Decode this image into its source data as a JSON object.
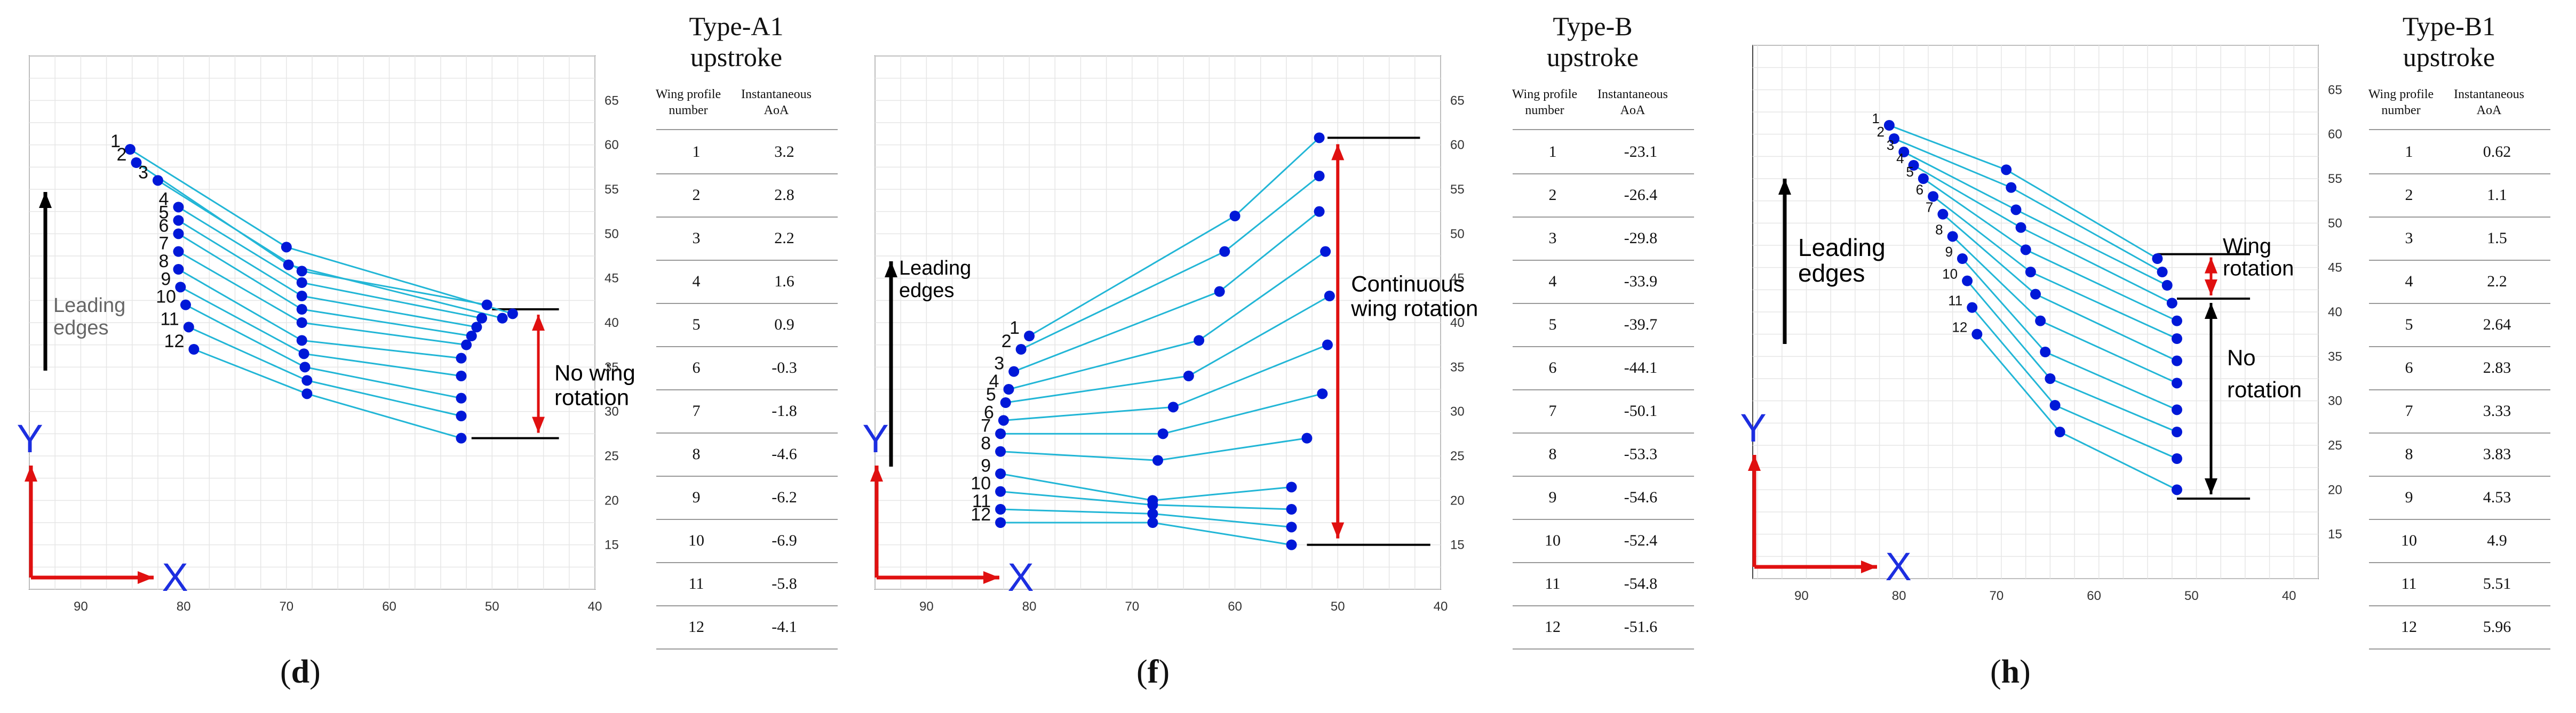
{
  "colors": {
    "line": "#22b6d6",
    "dot": "#0018d8",
    "arrow_red": "#e01010",
    "axis_red": "#e01010",
    "axis_blue": "#1c2ee0",
    "grid": "#e6e6e6"
  },
  "chart_data": [
    {
      "type": "scatter",
      "panel": "d",
      "caption": "d",
      "xlim": [
        95,
        40
      ],
      "ylim": [
        10,
        70
      ],
      "x_ticks": [
        "90",
        "80",
        "70",
        "60",
        "50",
        "40"
      ],
      "y_ticks": [
        "65",
        "60",
        "55",
        "50",
        "45",
        "40",
        "35",
        "30",
        "25",
        "20",
        "15"
      ],
      "axis_labels": {
        "x": "X",
        "y": "Y"
      },
      "annotation_left": "Leading\nedges",
      "annotation_right": "No wing\nrotation",
      "profile_labels": [
        "1",
        "2",
        "3",
        "4",
        "5",
        "6",
        "7",
        "8",
        "9",
        "10",
        "11",
        "12"
      ],
      "profiles": [
        {
          "le": [
            85.2,
            59.5
          ],
          "mid": [
            70.0,
            48.5
          ],
          "te": [
            48.0,
            41.0
          ]
        },
        {
          "le": [
            84.6,
            58.0
          ],
          "mid": [
            69.8,
            46.5
          ],
          "te": [
            49.0,
            40.5
          ]
        },
        {
          "le": [
            82.5,
            56.0
          ],
          "mid": [
            68.5,
            45.8
          ],
          "te": [
            50.5,
            42.0
          ]
        },
        {
          "le": [
            80.5,
            53.0
          ],
          "mid": [
            68.5,
            44.5
          ],
          "te": [
            51.0,
            40.5
          ]
        },
        {
          "le": [
            80.5,
            51.5
          ],
          "mid": [
            68.5,
            43.0
          ],
          "te": [
            51.5,
            39.5
          ]
        },
        {
          "le": [
            80.5,
            50.0
          ],
          "mid": [
            68.5,
            41.5
          ],
          "te": [
            52.0,
            38.5
          ]
        },
        {
          "le": [
            80.5,
            48.0
          ],
          "mid": [
            68.5,
            40.0
          ],
          "te": [
            52.5,
            37.5
          ]
        },
        {
          "le": [
            80.5,
            46.0
          ],
          "mid": [
            68.5,
            38.0
          ],
          "te": [
            53.0,
            36.0
          ]
        },
        {
          "le": [
            80.3,
            44.0
          ],
          "mid": [
            68.3,
            36.5
          ],
          "te": [
            53.0,
            34.0
          ]
        },
        {
          "le": [
            79.8,
            42.0
          ],
          "mid": [
            68.2,
            35.0
          ],
          "te": [
            53.0,
            31.5
          ]
        },
        {
          "le": [
            79.5,
            39.5
          ],
          "mid": [
            68.0,
            33.5
          ],
          "te": [
            53.0,
            29.5
          ]
        },
        {
          "le": [
            79.0,
            37.0
          ],
          "mid": [
            68.0,
            32.0
          ],
          "te": [
            53.0,
            27.0
          ]
        }
      ],
      "table": {
        "title": [
          "Type-A1",
          "upstroke"
        ],
        "col1": "Wing profile number",
        "col2": "Instantaneous AoA",
        "rows": [
          [
            "1",
            "3.2"
          ],
          [
            "2",
            "2.8"
          ],
          [
            "3",
            "2.2"
          ],
          [
            "4",
            "1.6"
          ],
          [
            "5",
            "0.9"
          ],
          [
            "6",
            "-0.3"
          ],
          [
            "7",
            "-1.8"
          ],
          [
            "8",
            "-4.6"
          ],
          [
            "9",
            "-6.2"
          ],
          [
            "10",
            "-6.9"
          ],
          [
            "11",
            "-5.8"
          ],
          [
            "12",
            "-4.1"
          ]
        ]
      }
    },
    {
      "type": "scatter",
      "panel": "f",
      "caption": "f",
      "xlim": [
        95,
        40
      ],
      "ylim": [
        10,
        70
      ],
      "x_ticks": [
        "90",
        "80",
        "70",
        "60",
        "50",
        "40"
      ],
      "y_ticks": [
        "65",
        "60",
        "55",
        "50",
        "45",
        "40",
        "35",
        "30",
        "25",
        "20",
        "15"
      ],
      "axis_labels": {
        "x": "X",
        "y": "Y"
      },
      "annotation_left": "Leading\nedges",
      "annotation_right": "Continuous\nwing rotation",
      "profile_labels": [
        "1",
        "2",
        "3",
        "4",
        "5",
        "6",
        "7",
        "8",
        "9",
        "10",
        "11",
        "12"
      ],
      "profiles": [
        {
          "le": [
            80.0,
            38.5
          ],
          "mid": [
            60.0,
            52.0
          ],
          "te": [
            51.8,
            60.8
          ]
        },
        {
          "le": [
            80.8,
            37.0
          ],
          "mid": [
            61.0,
            48.0
          ],
          "te": [
            51.8,
            56.5
          ]
        },
        {
          "le": [
            81.5,
            34.5
          ],
          "mid": [
            61.5,
            43.5
          ],
          "te": [
            51.8,
            52.5
          ]
        },
        {
          "le": [
            82.0,
            32.5
          ],
          "mid": [
            63.5,
            38.0
          ],
          "te": [
            51.2,
            48.0
          ]
        },
        {
          "le": [
            82.3,
            31.0
          ],
          "mid": [
            64.5,
            34.0
          ],
          "te": [
            50.8,
            43.0
          ]
        },
        {
          "le": [
            82.5,
            29.0
          ],
          "mid": [
            66.0,
            30.5
          ],
          "te": [
            51.0,
            37.5
          ]
        },
        {
          "le": [
            82.8,
            27.5
          ],
          "mid": [
            67.0,
            27.5
          ],
          "te": [
            51.5,
            32.0
          ]
        },
        {
          "le": [
            82.8,
            25.5
          ],
          "mid": [
            67.5,
            24.5
          ],
          "te": [
            53.0,
            27.0
          ]
        },
        {
          "le": [
            82.8,
            23.0
          ],
          "mid": [
            68.0,
            20.0
          ],
          "te": [
            54.5,
            21.5
          ]
        },
        {
          "le": [
            82.8,
            21.0
          ],
          "mid": [
            68.0,
            19.5
          ],
          "te": [
            54.5,
            19.0
          ]
        },
        {
          "le": [
            82.8,
            19.0
          ],
          "mid": [
            68.0,
            18.5
          ],
          "te": [
            54.5,
            17.0
          ]
        },
        {
          "le": [
            82.8,
            17.5
          ],
          "mid": [
            68.0,
            17.5
          ],
          "te": [
            54.5,
            15.0
          ]
        }
      ],
      "table": {
        "title": [
          "Type-B",
          "upstroke"
        ],
        "col1": "Wing profile number",
        "col2": "Instantaneous AoA",
        "rows": [
          [
            "1",
            "-23.1"
          ],
          [
            "2",
            "-26.4"
          ],
          [
            "3",
            "-29.8"
          ],
          [
            "4",
            "-33.9"
          ],
          [
            "5",
            "-39.7"
          ],
          [
            "6",
            "-44.1"
          ],
          [
            "7",
            "-50.1"
          ],
          [
            "8",
            "-53.3"
          ],
          [
            "9",
            "-54.6"
          ],
          [
            "10",
            "-52.4"
          ],
          [
            "11",
            "-54.8"
          ],
          [
            "12",
            "-51.6"
          ]
        ]
      }
    },
    {
      "type": "scatter",
      "panel": "h",
      "caption": "h",
      "xlim": [
        95,
        37
      ],
      "ylim": [
        10,
        70
      ],
      "x_ticks": [
        "90",
        "80",
        "70",
        "60",
        "50",
        "40"
      ],
      "y_ticks": [
        "65",
        "60",
        "55",
        "50",
        "45",
        "40",
        "35",
        "30",
        "25",
        "20",
        "15"
      ],
      "axis_labels": {
        "x": "X",
        "y": "Y"
      },
      "annotation_left": "Leading\nedges",
      "annotation_right_top": "Wing\nrotation",
      "annotation_right_bottom": "No\nrotation",
      "profile_labels": [
        "1",
        "2",
        "3",
        "4",
        "5",
        "6",
        "7",
        "8",
        "9",
        "10",
        "11",
        "12"
      ],
      "profiles": [
        {
          "le": [
            81.0,
            61.0
          ],
          "mid": [
            69.0,
            56.0
          ],
          "te": [
            53.5,
            46.0
          ]
        },
        {
          "le": [
            80.5,
            59.5
          ],
          "mid": [
            68.5,
            54.0
          ],
          "te": [
            53.0,
            44.5
          ]
        },
        {
          "le": [
            79.5,
            58.0
          ],
          "mid": [
            68.0,
            51.5
          ],
          "te": [
            52.5,
            43.0
          ]
        },
        {
          "le": [
            78.5,
            56.5
          ],
          "mid": [
            67.5,
            49.5
          ],
          "te": [
            52.0,
            41.0
          ]
        },
        {
          "le": [
            77.5,
            55.0
          ],
          "mid": [
            67.0,
            47.0
          ],
          "te": [
            51.5,
            39.0
          ]
        },
        {
          "le": [
            76.5,
            53.0
          ],
          "mid": [
            66.5,
            44.5
          ],
          "te": [
            51.5,
            37.0
          ]
        },
        {
          "le": [
            75.5,
            51.0
          ],
          "mid": [
            66.0,
            42.0
          ],
          "te": [
            51.5,
            34.5
          ]
        },
        {
          "le": [
            74.5,
            48.5
          ],
          "mid": [
            65.5,
            39.0
          ],
          "te": [
            51.5,
            32.0
          ]
        },
        {
          "le": [
            73.5,
            46.0
          ],
          "mid": [
            65.0,
            35.5
          ],
          "te": [
            51.5,
            29.0
          ]
        },
        {
          "le": [
            73.0,
            43.5
          ],
          "mid": [
            64.5,
            32.5
          ],
          "te": [
            51.5,
            26.5
          ]
        },
        {
          "le": [
            72.5,
            40.5
          ],
          "mid": [
            64.0,
            29.5
          ],
          "te": [
            51.5,
            23.5
          ]
        },
        {
          "le": [
            72.0,
            37.5
          ],
          "mid": [
            63.5,
            26.5
          ],
          "te": [
            51.5,
            20.0
          ]
        }
      ],
      "table": {
        "title": [
          "Type-B1",
          "upstroke"
        ],
        "col1": "Wing profile number",
        "col2": "Instantaneous AoA",
        "rows": [
          [
            "1",
            "0.62"
          ],
          [
            "2",
            "1.1"
          ],
          [
            "3",
            "1.5"
          ],
          [
            "4",
            "2.2"
          ],
          [
            "5",
            "2.64"
          ],
          [
            "6",
            "2.83"
          ],
          [
            "7",
            "3.33"
          ],
          [
            "8",
            "3.83"
          ],
          [
            "9",
            "4.53"
          ],
          [
            "10",
            "4.9"
          ],
          [
            "11",
            "5.51"
          ],
          [
            "12",
            "5.96"
          ]
        ]
      }
    }
  ]
}
